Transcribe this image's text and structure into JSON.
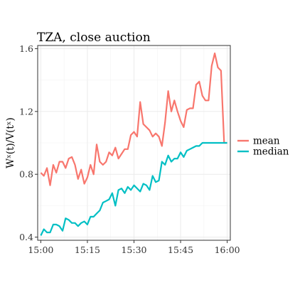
{
  "chart_data": {
    "type": "line",
    "title": "TZA, close auction",
    "ylabel": "Wˣ(t)/V(tˣ)",
    "xlabel": "",
    "x_tick_labels": [
      "15:00",
      "15:15",
      "15:30",
      "15:45",
      "16:00"
    ],
    "x_tick_minutes": [
      0,
      15,
      30,
      45,
      60
    ],
    "y_ticks": [
      0.4,
      0.8,
      1.2,
      1.6
    ],
    "y_tick_labels": [
      "0.4",
      "0.8",
      "1.2",
      "1.6"
    ],
    "xlim": [
      -1,
      61
    ],
    "ylim": [
      0.38,
      1.62
    ],
    "legend_position": "right",
    "grid": true,
    "series": [
      {
        "name": "mean",
        "color": "#F8766D",
        "x": [
          0,
          1,
          2,
          3,
          4,
          5,
          6,
          7,
          8,
          9,
          10,
          11,
          12,
          13,
          14,
          15,
          16,
          17,
          18,
          19,
          20,
          21,
          22,
          23,
          24,
          25,
          26,
          27,
          28,
          29,
          30,
          31,
          32,
          33,
          34,
          35,
          36,
          37,
          38,
          39,
          40,
          41,
          42,
          43,
          44,
          45,
          46,
          47,
          48,
          49,
          50,
          51,
          52,
          53,
          54,
          55,
          56,
          57,
          58,
          59,
          60
        ],
        "values": [
          0.81,
          0.79,
          0.84,
          0.73,
          0.86,
          0.81,
          0.88,
          0.88,
          0.84,
          0.9,
          0.91,
          0.86,
          0.77,
          0.83,
          0.74,
          0.78,
          0.86,
          0.8,
          0.99,
          0.88,
          0.86,
          0.88,
          0.94,
          0.92,
          0.97,
          0.9,
          0.93,
          0.96,
          0.96,
          1.05,
          1.07,
          1.04,
          1.26,
          1.12,
          1.1,
          1.08,
          1.04,
          1.06,
          1.04,
          0.98,
          1.13,
          1.33,
          1.2,
          1.27,
          1.2,
          1.14,
          1.1,
          1.21,
          1.22,
          1.22,
          1.37,
          1.39,
          1.3,
          1.27,
          1.27,
          1.49,
          1.57,
          1.48,
          1.46,
          1.0,
          1.0
        ]
      },
      {
        "name": "median",
        "color": "#00BFC4",
        "x": [
          0,
          1,
          2,
          3,
          4,
          5,
          6,
          7,
          8,
          9,
          10,
          11,
          12,
          13,
          14,
          15,
          16,
          17,
          18,
          19,
          20,
          21,
          22,
          23,
          24,
          25,
          26,
          27,
          28,
          29,
          30,
          31,
          32,
          33,
          34,
          35,
          36,
          37,
          38,
          39,
          40,
          41,
          42,
          43,
          44,
          45,
          46,
          47,
          48,
          49,
          50,
          51,
          52,
          53,
          54,
          55,
          56,
          57,
          58,
          59,
          60
        ],
        "values": [
          0.41,
          0.45,
          0.43,
          0.43,
          0.48,
          0.48,
          0.47,
          0.44,
          0.52,
          0.51,
          0.49,
          0.49,
          0.47,
          0.49,
          0.5,
          0.48,
          0.53,
          0.53,
          0.55,
          0.57,
          0.62,
          0.63,
          0.64,
          0.68,
          0.6,
          0.7,
          0.71,
          0.68,
          0.72,
          0.7,
          0.73,
          0.71,
          0.69,
          0.74,
          0.73,
          0.7,
          0.79,
          0.75,
          0.76,
          0.88,
          0.86,
          0.92,
          0.88,
          0.9,
          0.9,
          0.94,
          0.91,
          0.95,
          0.96,
          0.97,
          0.98,
          0.98,
          1.0,
          1.0,
          1.0,
          1.0,
          1.0,
          1.0,
          1.0,
          1.0,
          1.0
        ]
      }
    ]
  }
}
